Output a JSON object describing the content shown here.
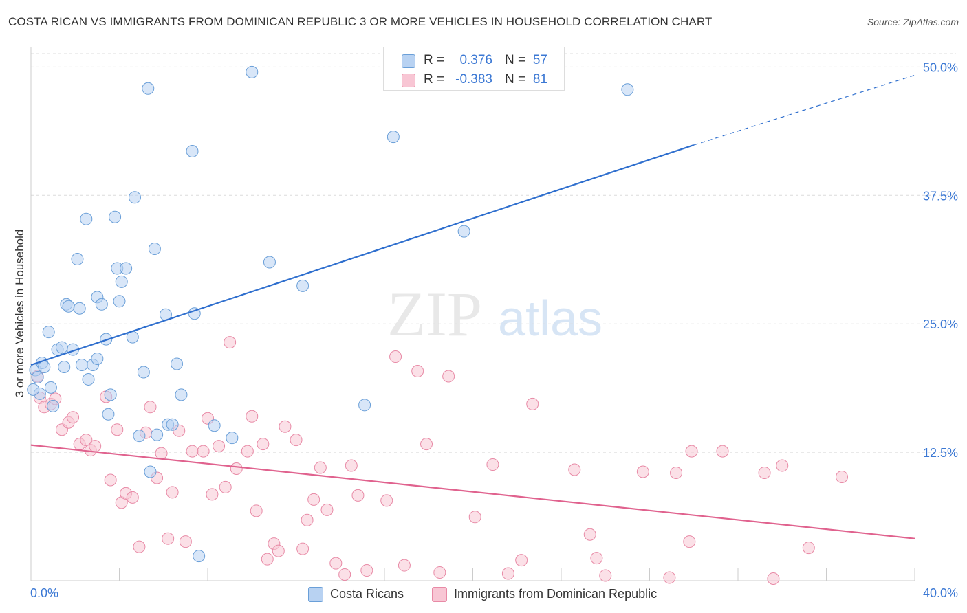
{
  "title": "COSTA RICAN VS IMMIGRANTS FROM DOMINICAN REPUBLIC 3 OR MORE VEHICLES IN HOUSEHOLD CORRELATION CHART",
  "source": "Source: ZipAtlas.com",
  "watermark": {
    "zip": "ZIP",
    "atlas": "atlas"
  },
  "legend": {
    "rows": [
      {
        "r_label": "R =",
        "r_value": "0.376",
        "n_label": "N =",
        "n_value": "57"
      },
      {
        "r_label": "R =",
        "r_value": "-0.383",
        "n_label": "N =",
        "n_value": "81"
      }
    ]
  },
  "bottom_legend": {
    "series1": "Costa Ricans",
    "series2": "Immigrants from Dominican Republic"
  },
  "colors": {
    "blue_fill": "#b8d2f2",
    "blue_stroke": "#6a9fd8",
    "blue_line": "#2f6fce",
    "pink_fill": "#f8c6d4",
    "pink_stroke": "#e88aa6",
    "pink_line": "#e0628e",
    "axis_label": "#3b78d4",
    "grid": "#dcdcdc"
  },
  "chart_data": {
    "type": "scatter",
    "title": "COSTA RICAN VS IMMIGRANTS FROM DOMINICAN REPUBLIC 3 OR MORE VEHICLES IN HOUSEHOLD CORRELATION CHART",
    "xlabel": "",
    "ylabel": "3 or more Vehicles in Household",
    "xlim": [
      0,
      40
    ],
    "ylim": [
      0,
      50
    ],
    "x_tick_labels": [
      "0.0%",
      "40.0%"
    ],
    "y_ticks": [
      12.5,
      25.0,
      37.5,
      50.0
    ],
    "y_tick_labels": [
      "12.5%",
      "25.0%",
      "37.5%",
      "50.0%"
    ],
    "series": [
      {
        "name": "Costa Ricans",
        "r": 0.376,
        "n": 57,
        "trend": {
          "x0": 0,
          "y0": 21.0,
          "x1": 30,
          "y1": 42.4,
          "dash_x1": 40,
          "dash_y1": 49.2
        },
        "points": [
          [
            0.2,
            20.5
          ],
          [
            0.3,
            19.8
          ],
          [
            0.4,
            18.2
          ],
          [
            0.5,
            21.2
          ],
          [
            0.6,
            20.8
          ],
          [
            0.8,
            24.2
          ],
          [
            0.9,
            18.8
          ],
          [
            1.0,
            17.0
          ],
          [
            1.2,
            22.5
          ],
          [
            1.4,
            22.7
          ],
          [
            1.5,
            20.8
          ],
          [
            1.6,
            26.9
          ],
          [
            1.7,
            26.7
          ],
          [
            1.9,
            22.5
          ],
          [
            2.1,
            31.3
          ],
          [
            2.2,
            26.5
          ],
          [
            2.3,
            21.0
          ],
          [
            2.5,
            35.2
          ],
          [
            2.6,
            19.6
          ],
          [
            2.8,
            21.0
          ],
          [
            3.0,
            21.6
          ],
          [
            3.0,
            27.6
          ],
          [
            3.2,
            26.9
          ],
          [
            3.4,
            23.5
          ],
          [
            3.5,
            16.2
          ],
          [
            3.6,
            18.1
          ],
          [
            3.8,
            35.4
          ],
          [
            3.9,
            30.4
          ],
          [
            4.0,
            27.2
          ],
          [
            4.1,
            29.1
          ],
          [
            4.3,
            30.4
          ],
          [
            4.6,
            23.7
          ],
          [
            4.7,
            37.3
          ],
          [
            4.9,
            14.1
          ],
          [
            5.1,
            20.3
          ],
          [
            5.4,
            10.6
          ],
          [
            5.3,
            47.9
          ],
          [
            5.6,
            32.3
          ],
          [
            5.7,
            14.2
          ],
          [
            6.1,
            25.9
          ],
          [
            6.2,
            15.2
          ],
          [
            6.4,
            15.2
          ],
          [
            6.6,
            21.1
          ],
          [
            6.8,
            18.1
          ],
          [
            7.3,
            41.8
          ],
          [
            7.4,
            26.0
          ],
          [
            7.6,
            2.4
          ],
          [
            8.3,
            15.1
          ],
          [
            9.1,
            13.9
          ],
          [
            10.0,
            49.5
          ],
          [
            10.8,
            31.0
          ],
          [
            12.3,
            28.7
          ],
          [
            15.1,
            17.1
          ],
          [
            16.4,
            43.2
          ],
          [
            19.6,
            34.0
          ],
          [
            27.0,
            47.8
          ],
          [
            0.1,
            18.6
          ]
        ]
      },
      {
        "name": "Immigrants from Dominican Republic",
        "r": -0.383,
        "n": 81,
        "trend": {
          "x0": 0,
          "y0": 13.2,
          "x1": 40,
          "y1": 4.1
        },
        "points": [
          [
            0.3,
            19.9
          ],
          [
            0.4,
            17.8
          ],
          [
            0.6,
            16.9
          ],
          [
            0.9,
            17.2
          ],
          [
            1.1,
            17.7
          ],
          [
            1.4,
            14.7
          ],
          [
            1.7,
            15.4
          ],
          [
            1.9,
            15.9
          ],
          [
            2.2,
            13.3
          ],
          [
            2.5,
            13.7
          ],
          [
            2.7,
            12.7
          ],
          [
            2.9,
            13.1
          ],
          [
            3.4,
            17.9
          ],
          [
            3.6,
            9.8
          ],
          [
            3.9,
            14.7
          ],
          [
            4.1,
            7.6
          ],
          [
            4.3,
            8.5
          ],
          [
            4.6,
            8.1
          ],
          [
            4.9,
            3.3
          ],
          [
            5.2,
            14.4
          ],
          [
            5.4,
            16.9
          ],
          [
            5.7,
            10.0
          ],
          [
            5.9,
            12.4
          ],
          [
            6.2,
            4.1
          ],
          [
            6.4,
            8.6
          ],
          [
            6.7,
            14.6
          ],
          [
            7.0,
            3.8
          ],
          [
            7.3,
            12.6
          ],
          [
            7.8,
            12.6
          ],
          [
            8.0,
            15.8
          ],
          [
            8.2,
            8.4
          ],
          [
            8.5,
            13.1
          ],
          [
            8.8,
            9.1
          ],
          [
            9.0,
            23.2
          ],
          [
            9.3,
            10.9
          ],
          [
            9.8,
            12.6
          ],
          [
            10.0,
            16.0
          ],
          [
            10.2,
            6.8
          ],
          [
            10.5,
            13.3
          ],
          [
            10.7,
            2.1
          ],
          [
            11.0,
            3.6
          ],
          [
            11.2,
            2.9
          ],
          [
            11.5,
            15.0
          ],
          [
            12.0,
            13.7
          ],
          [
            12.3,
            3.1
          ],
          [
            12.5,
            5.9
          ],
          [
            12.8,
            7.9
          ],
          [
            13.1,
            11.0
          ],
          [
            13.4,
            6.9
          ],
          [
            13.8,
            1.7
          ],
          [
            14.2,
            0.6
          ],
          [
            14.5,
            11.2
          ],
          [
            14.8,
            8.3
          ],
          [
            15.2,
            1.0
          ],
          [
            16.1,
            7.8
          ],
          [
            16.5,
            21.8
          ],
          [
            16.9,
            1.5
          ],
          [
            17.5,
            20.4
          ],
          [
            17.9,
            13.3
          ],
          [
            18.5,
            0.8
          ],
          [
            18.9,
            19.9
          ],
          [
            20.1,
            6.2
          ],
          [
            20.9,
            11.3
          ],
          [
            21.6,
            0.7
          ],
          [
            22.2,
            2.0
          ],
          [
            22.7,
            17.2
          ],
          [
            24.6,
            10.8
          ],
          [
            25.3,
            4.5
          ],
          [
            25.6,
            2.2
          ],
          [
            26.0,
            0.5
          ],
          [
            27.7,
            10.6
          ],
          [
            28.9,
            0.3
          ],
          [
            29.2,
            10.5
          ],
          [
            29.8,
            3.8
          ],
          [
            29.9,
            12.6
          ],
          [
            31.3,
            12.6
          ],
          [
            33.2,
            10.5
          ],
          [
            33.6,
            0.2
          ],
          [
            34.0,
            11.2
          ],
          [
            35.2,
            3.2
          ],
          [
            36.7,
            10.1
          ]
        ]
      }
    ]
  }
}
